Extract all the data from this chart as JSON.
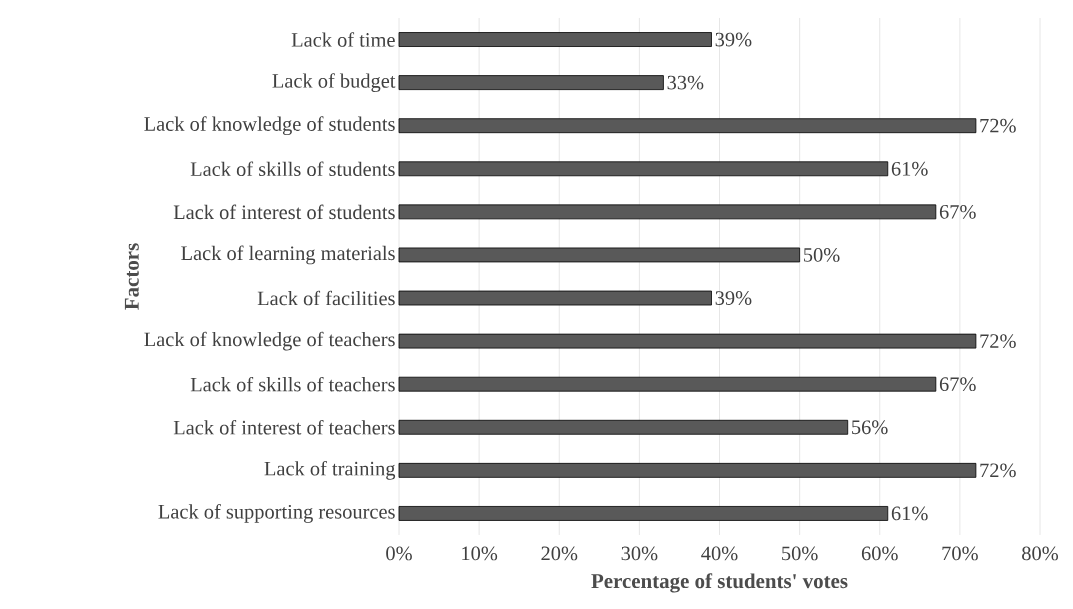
{
  "chart_data": {
    "type": "bar",
    "orientation": "horizontal",
    "xlabel": "Percentage of students' votes",
    "ylabel": "Factors",
    "categories": [
      "Lack of time",
      "Lack of budget",
      "Lack of knowledge of students",
      "Lack of skills of students",
      "Lack of interest of students",
      "Lack of learning materials",
      "Lack of facilities",
      "Lack of knowledge of teachers",
      "Lack of skills of teachers",
      "Lack of interest of teachers",
      "Lack of training",
      "Lack of supporting resources"
    ],
    "values": [
      39,
      33,
      72,
      61,
      67,
      50,
      39,
      72,
      67,
      56,
      72,
      61
    ],
    "value_labels": [
      "39%",
      "33%",
      "72%",
      "61%",
      "67%",
      "50%",
      "39%",
      "72%",
      "67%",
      "56%",
      "72%",
      "61%"
    ],
    "color": "#595959",
    "xlim": [
      0,
      80
    ],
    "xticks": [
      {
        "value": 0,
        "label": "0%"
      },
      {
        "value": 10,
        "label": "10%"
      },
      {
        "value": 20,
        "label": "20%"
      },
      {
        "value": 30,
        "label": "30%"
      },
      {
        "value": 40,
        "label": "40%"
      },
      {
        "value": 50,
        "label": "50%"
      },
      {
        "value": 60,
        "label": "60%"
      },
      {
        "value": 70,
        "label": "70%"
      },
      {
        "value": 80,
        "label": "80%"
      }
    ],
    "grid": "x"
  }
}
